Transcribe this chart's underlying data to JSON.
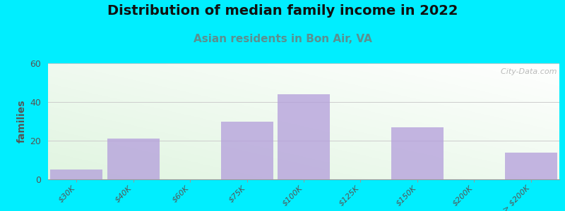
{
  "title": "Distribution of median family income in 2022",
  "subtitle": "Asian residents in Bon Air, VA",
  "ylabel": "families",
  "categories": [
    "$30K",
    "$40K",
    "$60K",
    "$75K",
    "$100K",
    "$125K",
    "$150K",
    "$200K",
    "> $200K"
  ],
  "values": [
    5,
    21,
    0,
    30,
    44,
    0,
    27,
    0,
    14
  ],
  "bar_color": "#b39ddb",
  "bar_alpha": 0.75,
  "ylim": [
    0,
    60
  ],
  "yticks": [
    0,
    20,
    40,
    60
  ],
  "background_outer": "#00eeff",
  "title_fontsize": 14,
  "subtitle_fontsize": 11,
  "subtitle_color": "#5b9090",
  "watermark": "  City-Data.com"
}
